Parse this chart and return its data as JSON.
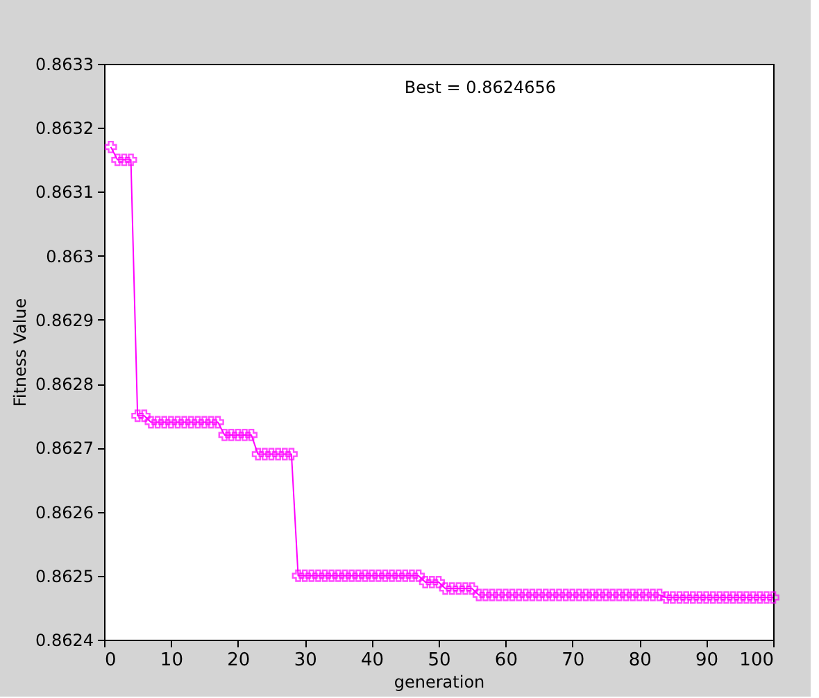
{
  "chart_data": {
    "type": "line",
    "xlabel": "generation",
    "ylabel": "Fitness Value",
    "annotations": [
      "Best = 0.8624656"
    ],
    "x": [
      1,
      2,
      3,
      4,
      5,
      6,
      7,
      8,
      9,
      10,
      11,
      12,
      13,
      14,
      15,
      16,
      17,
      18,
      19,
      20,
      21,
      22,
      23,
      24,
      25,
      26,
      27,
      28,
      29,
      30,
      31,
      32,
      33,
      34,
      35,
      36,
      37,
      38,
      39,
      40,
      41,
      42,
      43,
      44,
      45,
      46,
      47,
      48,
      49,
      50,
      51,
      52,
      53,
      54,
      55,
      56,
      57,
      58,
      59,
      60,
      61,
      62,
      63,
      64,
      65,
      66,
      67,
      68,
      69,
      70,
      71,
      72,
      73,
      74,
      75,
      76,
      77,
      78,
      79,
      80,
      81,
      82,
      83,
      84,
      85,
      86,
      87,
      88,
      89,
      90,
      91,
      92,
      93,
      94,
      95,
      96,
      97,
      98,
      99,
      100
    ],
    "series": [
      {
        "color": "#ff00ff",
        "values": [
          0.86317,
          0.86315,
          0.86315,
          0.86315,
          0.86275,
          0.86275,
          0.86274,
          0.86274,
          0.86274,
          0.86274,
          0.86274,
          0.86274,
          0.86274,
          0.86274,
          0.86274,
          0.86274,
          0.86274,
          0.86272,
          0.86272,
          0.86272,
          0.86272,
          0.86272,
          0.86269,
          0.86269,
          0.86269,
          0.86269,
          0.86269,
          0.86269,
          0.8625,
          0.8625,
          0.8625,
          0.8625,
          0.8625,
          0.8625,
          0.8625,
          0.8625,
          0.8625,
          0.8625,
          0.8625,
          0.8625,
          0.8625,
          0.8625,
          0.8625,
          0.8625,
          0.8625,
          0.8625,
          0.8625,
          0.86249,
          0.86249,
          0.86249,
          0.86248,
          0.86248,
          0.86248,
          0.86248,
          0.86248,
          0.86247,
          0.86247,
          0.86247,
          0.86247,
          0.86247,
          0.86247,
          0.86247,
          0.86247,
          0.86247,
          0.86247,
          0.86247,
          0.86247,
          0.86247,
          0.86247,
          0.86247,
          0.86247,
          0.86247,
          0.86247,
          0.86247,
          0.86247,
          0.86247,
          0.86247,
          0.86247,
          0.86247,
          0.86247,
          0.86247,
          0.86247,
          0.86247,
          0.862466,
          0.862466,
          0.862466,
          0.862466,
          0.862466,
          0.862466,
          0.862466,
          0.862466,
          0.862466,
          0.862466,
          0.862466,
          0.862466,
          0.862466,
          0.862466,
          0.862466,
          0.862466,
          0.862466
        ]
      }
    ],
    "xlim": [
      0,
      100
    ],
    "xticks": [
      0,
      10,
      20,
      30,
      40,
      50,
      60,
      70,
      80,
      90,
      100
    ],
    "ylim": [
      0.8624,
      0.8633
    ],
    "yticks": [
      0.8624,
      0.8625,
      0.8626,
      0.8627,
      0.8628,
      0.8629,
      0.863,
      0.8631,
      0.8632,
      0.8633
    ],
    "grid": false,
    "legend": false,
    "marker": "cross",
    "line_style": "solid"
  }
}
